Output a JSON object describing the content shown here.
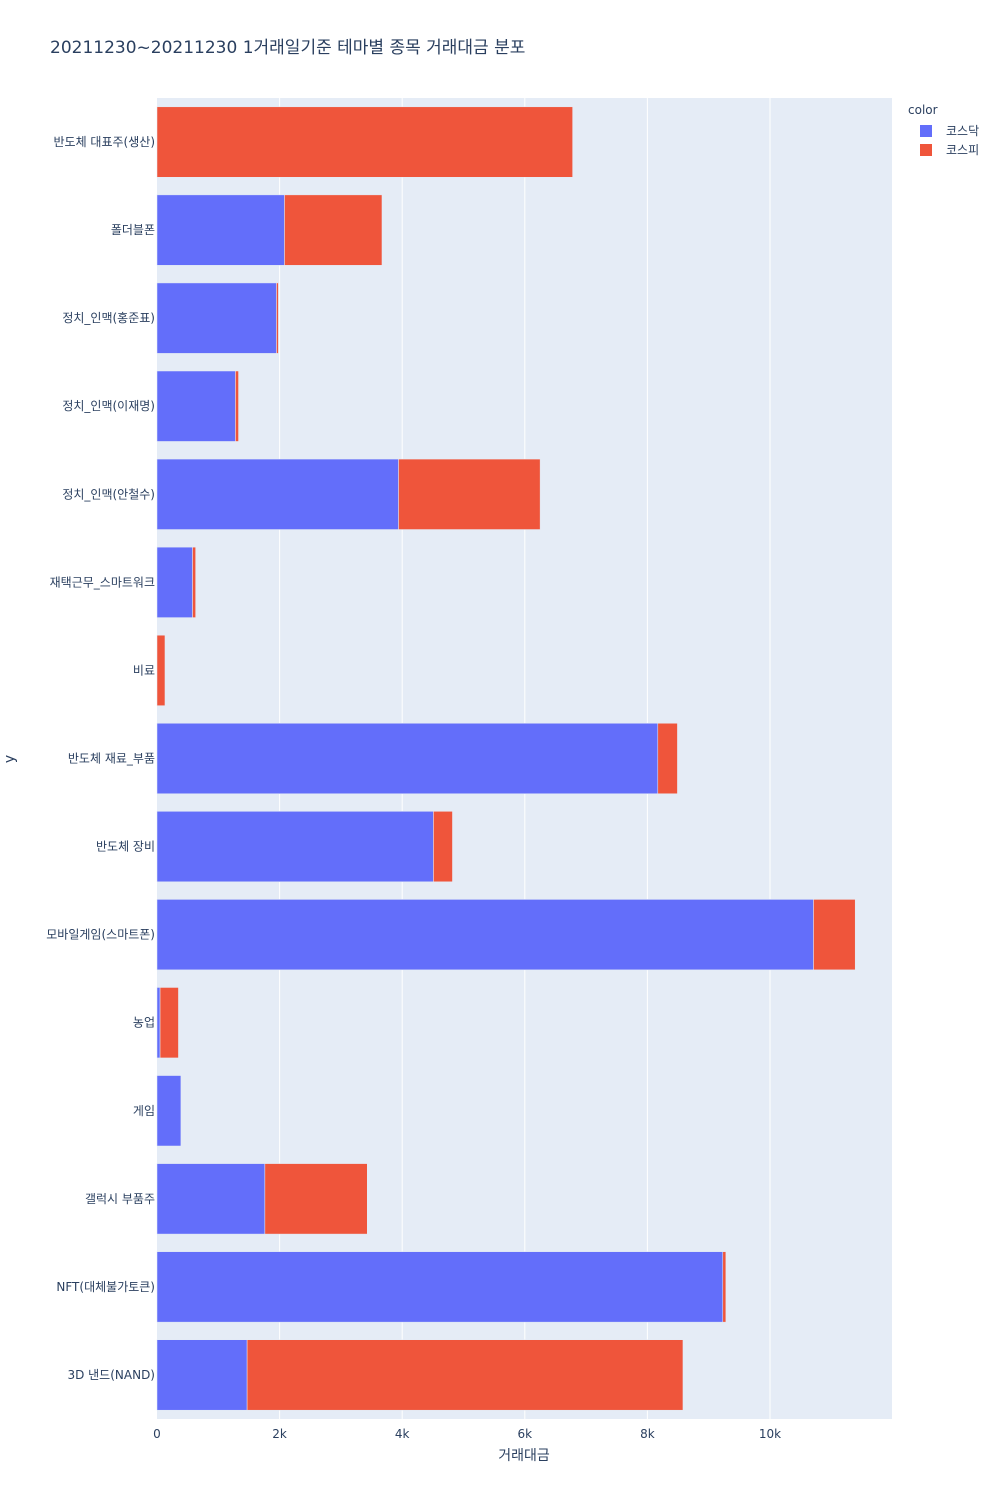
{
  "chart_data": {
    "type": "bar",
    "orientation": "horizontal",
    "barmode": "stack",
    "title": "20211230~20211230 1거래일기준 테마별 종목 거래대금 분포",
    "xlabel": "거래대금",
    "ylabel": "y",
    "xlim": [
      0,
      12000
    ],
    "xticks": [
      0,
      2000,
      4000,
      6000,
      8000,
      10000
    ],
    "xtick_labels": [
      "0",
      "2k",
      "4k",
      "6k",
      "8k",
      "10k"
    ],
    "legend_title": "color",
    "legend_position": "top-right",
    "categories": [
      "반도체 대표주(생산)",
      "폴더블폰",
      "정치_인맥(홍준표)",
      "정치_인맥(이재명)",
      "정치_인맥(안철수)",
      "재택근무_스마트워크",
      "비료",
      "반도체 재료_부품",
      "반도체 장비",
      "모바일게임(스마트폰)",
      "농업",
      "게임",
      "갤럭시 부품주",
      "NFT(대체불가토큰)",
      "3D 낸드(NAND)"
    ],
    "series": [
      {
        "name": "코스닥",
        "color": "#636efa",
        "values": [
          0,
          2080,
          1950,
          1280,
          3940,
          580,
          0,
          8170,
          4510,
          10710,
          50,
          390,
          1760,
          9230,
          1470
        ]
      },
      {
        "name": "코스피",
        "color": "#ef553b",
        "values": [
          6780,
          1590,
          30,
          50,
          2310,
          50,
          130,
          320,
          310,
          680,
          300,
          0,
          1670,
          50,
          7110
        ]
      }
    ]
  }
}
